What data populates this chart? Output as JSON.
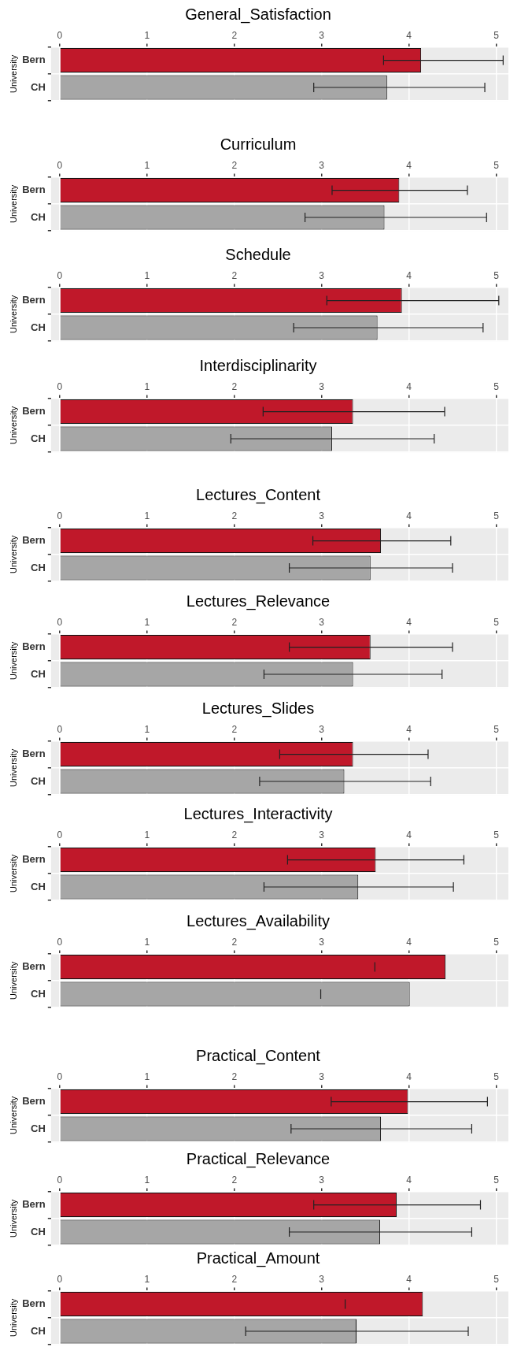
{
  "chart_data": [
    {
      "type": "bar",
      "orientation": "horizontal",
      "title": "General_Satisfaction",
      "ylabel": "University",
      "categories": [
        "Bern",
        "CH"
      ],
      "values": [
        4.14,
        3.75
      ],
      "errors": [
        [
          3.71,
          5.08
        ],
        [
          2.91,
          4.87
        ]
      ],
      "colors": [
        "#c0182a",
        "#a6a6a6"
      ],
      "xlim": [
        -0.1,
        5.14
      ],
      "xticks": [
        0,
        1,
        2,
        3,
        4,
        5
      ],
      "grid": true,
      "legend": false
    },
    {
      "type": "bar",
      "orientation": "horizontal",
      "title": "Curriculum",
      "ylabel": "University",
      "categories": [
        "Bern",
        "CH"
      ],
      "values": [
        3.89,
        3.72
      ],
      "errors": [
        [
          3.12,
          4.67
        ],
        [
          2.81,
          4.89
        ]
      ],
      "colors": [
        "#c0182a",
        "#a6a6a6"
      ],
      "xlim": [
        -0.1,
        5.14
      ],
      "xticks": [
        0,
        1,
        2,
        3,
        4,
        5
      ],
      "grid": true,
      "legend": false
    },
    {
      "type": "bar",
      "orientation": "horizontal",
      "title": "Schedule",
      "ylabel": "University",
      "categories": [
        "Bern",
        "CH"
      ],
      "values": [
        3.92,
        3.64
      ],
      "errors": [
        [
          3.06,
          5.03
        ],
        [
          2.68,
          4.85
        ]
      ],
      "colors": [
        "#c0182a",
        "#a6a6a6"
      ],
      "xlim": [
        -0.1,
        5.14
      ],
      "xticks": [
        0,
        1,
        2,
        3,
        4,
        5
      ],
      "grid": true,
      "legend": false
    },
    {
      "type": "bar",
      "orientation": "horizontal",
      "title": "Interdisciplinarity",
      "ylabel": "University",
      "categories": [
        "Bern",
        "CH"
      ],
      "values": [
        3.36,
        3.12
      ],
      "errors": [
        [
          2.33,
          4.41
        ],
        [
          1.96,
          4.29
        ]
      ],
      "colors": [
        "#c0182a",
        "#a6a6a6"
      ],
      "xlim": [
        -0.1,
        5.14
      ],
      "xticks": [
        0,
        1,
        2,
        3,
        4,
        5
      ],
      "grid": true,
      "legend": false
    },
    {
      "type": "bar",
      "orientation": "horizontal",
      "title": "Lectures_Content",
      "ylabel": "University",
      "categories": [
        "Bern",
        "CH"
      ],
      "values": [
        3.68,
        3.56
      ],
      "errors": [
        [
          2.9,
          4.48
        ],
        [
          2.63,
          4.5
        ]
      ],
      "colors": [
        "#c0182a",
        "#a6a6a6"
      ],
      "xlim": [
        -0.1,
        5.14
      ],
      "xticks": [
        0,
        1,
        2,
        3,
        4,
        5
      ],
      "grid": true,
      "legend": false
    },
    {
      "type": "bar",
      "orientation": "horizontal",
      "title": "Lectures_Relevance",
      "ylabel": "University",
      "categories": [
        "Bern",
        "CH"
      ],
      "values": [
        3.56,
        3.36
      ],
      "errors": [
        [
          2.63,
          4.5
        ],
        [
          2.34,
          4.38
        ]
      ],
      "colors": [
        "#c0182a",
        "#a6a6a6"
      ],
      "xlim": [
        -0.1,
        5.14
      ],
      "xticks": [
        0,
        1,
        2,
        3,
        4,
        5
      ],
      "grid": true,
      "legend": false
    },
    {
      "type": "bar",
      "orientation": "horizontal",
      "title": "Lectures_Slides",
      "ylabel": "University",
      "categories": [
        "Bern",
        "CH"
      ],
      "values": [
        3.36,
        3.26
      ],
      "errors": [
        [
          2.52,
          4.22
        ],
        [
          2.29,
          4.25
        ]
      ],
      "colors": [
        "#c0182a",
        "#a6a6a6"
      ],
      "xlim": [
        -0.1,
        5.14
      ],
      "xticks": [
        0,
        1,
        2,
        3,
        4,
        5
      ],
      "grid": true,
      "legend": false
    },
    {
      "type": "bar",
      "orientation": "horizontal",
      "title": "Lectures_Interactivity",
      "ylabel": "University",
      "categories": [
        "Bern",
        "CH"
      ],
      "values": [
        3.62,
        3.42
      ],
      "errors": [
        [
          2.61,
          4.63
        ],
        [
          2.34,
          4.51
        ]
      ],
      "colors": [
        "#c0182a",
        "#a6a6a6"
      ],
      "xlim": [
        -0.1,
        5.14
      ],
      "xticks": [
        0,
        1,
        2,
        3,
        4,
        5
      ],
      "grid": true,
      "legend": false
    },
    {
      "type": "bar",
      "orientation": "horizontal",
      "title": "Lectures_Availability",
      "ylabel": "University",
      "categories": [
        "Bern",
        "CH"
      ],
      "values": [
        4.42,
        4.01
      ],
      "errors": [
        [
          3.61,
          3.61
        ],
        [
          2.99,
          2.99
        ]
      ],
      "colors": [
        "#c0182a",
        "#a6a6a6"
      ],
      "xlim": [
        -0.1,
        5.14
      ],
      "xticks": [
        0,
        1,
        2,
        3,
        4,
        5
      ],
      "grid": true,
      "legend": false
    },
    {
      "type": "bar",
      "orientation": "horizontal",
      "title": "Practical_Content",
      "ylabel": "University",
      "categories": [
        "Bern",
        "CH"
      ],
      "values": [
        3.99,
        3.68
      ],
      "errors": [
        [
          3.11,
          4.9
        ],
        [
          2.65,
          4.72
        ]
      ],
      "colors": [
        "#c0182a",
        "#a6a6a6"
      ],
      "xlim": [
        -0.1,
        5.14
      ],
      "xticks": [
        0,
        1,
        2,
        3,
        4,
        5
      ],
      "grid": true,
      "legend": false
    },
    {
      "type": "bar",
      "orientation": "horizontal",
      "title": "Practical_Relevance",
      "ylabel": "University",
      "categories": [
        "Bern",
        "CH"
      ],
      "values": [
        3.86,
        3.67
      ],
      "errors": [
        [
          2.91,
          4.82
        ],
        [
          2.63,
          4.72
        ]
      ],
      "colors": [
        "#c0182a",
        "#a6a6a6"
      ],
      "xlim": [
        -0.1,
        5.14
      ],
      "xticks": [
        0,
        1,
        2,
        3,
        4,
        5
      ],
      "grid": true,
      "legend": false
    },
    {
      "type": "bar",
      "orientation": "horizontal",
      "title": "Practical_Amount",
      "ylabel": "University",
      "categories": [
        "Bern",
        "CH"
      ],
      "values": [
        4.16,
        3.4
      ],
      "errors": [
        [
          3.27,
          3.27
        ],
        [
          2.13,
          4.68
        ]
      ],
      "colors": [
        "#c0182a",
        "#a6a6a6"
      ],
      "xlim": [
        -0.1,
        5.14
      ],
      "xticks": [
        0,
        1,
        2,
        3,
        4,
        5
      ],
      "grid": true,
      "legend": false
    }
  ]
}
